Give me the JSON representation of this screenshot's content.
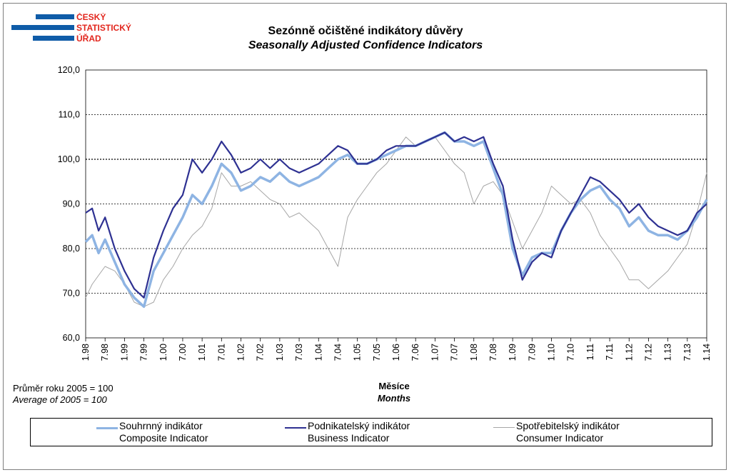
{
  "logo": {
    "lines": [
      "ČESKÝ",
      "STATISTICKÝ",
      "ÚŘAD"
    ],
    "color": "#e2261d",
    "bar_color": "#0f5ca8"
  },
  "title": {
    "cz": "Sezónně očištěné indikátory důvěry",
    "en": "Seasonally Adjusted Confidence Indicators"
  },
  "note": {
    "cz": "Průměr roku 2005 = 100",
    "en": "Average of 2005 = 100"
  },
  "xaxis_title": {
    "cz": "Měsíce",
    "en": "Months"
  },
  "legend": [
    {
      "cz": "Souhrnný indikátor",
      "en": "Composite Indicator",
      "color": "#8eb4e3",
      "width": 3.5
    },
    {
      "cz": "Podnikatelský indikátor",
      "en": "Business Indicator",
      "color": "#2e3192",
      "width": 2.2
    },
    {
      "cz": "Spotřebitelský indikátor",
      "en": "Consumer Indicator",
      "color": "#a6a6a6",
      "width": 1
    }
  ],
  "chart_data": {
    "type": "line",
    "xlabel": "Měsíce / Months",
    "ylabel": "",
    "ylim": [
      60,
      120
    ],
    "yticks": [
      "60,0",
      "70,0",
      "80,0",
      "90,0",
      "100,0",
      "110,0",
      "120,0"
    ],
    "x_range": [
      "1.98",
      "1.14"
    ],
    "xticks": [
      "1.98",
      "7.98",
      "1.99",
      "7.99",
      "1.00",
      "7.00",
      "1.01",
      "7.01",
      "1.02",
      "7.02",
      "1.03",
      "7.03",
      "1.04",
      "7.04",
      "1.05",
      "7.05",
      "1.06",
      "7.06",
      "1.07",
      "7.07",
      "1.08",
      "7.08",
      "1.09",
      "7.09",
      "1.10",
      "7.10",
      "1.11",
      "7.11",
      "1.12",
      "7.12",
      "1.13",
      "7.13",
      "1.14"
    ],
    "grid": "horizontal dashed",
    "legend_position": "bottom",
    "series": [
      {
        "name": "Souhrnný indikátor / Composite Indicator",
        "anchors": [
          [
            "1.98",
            81.5
          ],
          [
            "3.98",
            83
          ],
          [
            "5.98",
            79
          ],
          [
            "7.98",
            82
          ],
          [
            "10.98",
            77
          ],
          [
            "1.99",
            72
          ],
          [
            "4.99",
            69
          ],
          [
            "7.99",
            67
          ],
          [
            "10.99",
            75
          ],
          [
            "1.00",
            79
          ],
          [
            "4.00",
            83
          ],
          [
            "7.00",
            87
          ],
          [
            "10.00",
            92
          ],
          [
            "1.01",
            90
          ],
          [
            "4.01",
            94
          ],
          [
            "7.01",
            99
          ],
          [
            "10.01",
            97
          ],
          [
            "1.02",
            93
          ],
          [
            "4.02",
            94
          ],
          [
            "7.02",
            96
          ],
          [
            "10.02",
            95
          ],
          [
            "1.03",
            97
          ],
          [
            "4.03",
            95
          ],
          [
            "7.03",
            94
          ],
          [
            "10.03",
            95
          ],
          [
            "1.04",
            96
          ],
          [
            "4.04",
            98
          ],
          [
            "7.04",
            100
          ],
          [
            "10.04",
            101
          ],
          [
            "1.05",
            99
          ],
          [
            "4.05",
            99
          ],
          [
            "7.05",
            100
          ],
          [
            "10.05",
            101
          ],
          [
            "1.06",
            102
          ],
          [
            "4.06",
            103
          ],
          [
            "7.06",
            103
          ],
          [
            "10.06",
            104
          ],
          [
            "1.07",
            105
          ],
          [
            "4.07",
            106
          ],
          [
            "7.07",
            104
          ],
          [
            "10.07",
            104
          ],
          [
            "1.08",
            103
          ],
          [
            "4.08",
            104
          ],
          [
            "7.08",
            98
          ],
          [
            "10.08",
            92
          ],
          [
            "1.09",
            80
          ],
          [
            "4.09",
            74
          ],
          [
            "7.09",
            78
          ],
          [
            "10.09",
            79
          ],
          [
            "1.10",
            79
          ],
          [
            "4.10",
            84
          ],
          [
            "7.10",
            88
          ],
          [
            "10.10",
            91
          ],
          [
            "1.11",
            93
          ],
          [
            "4.11",
            94
          ],
          [
            "7.11",
            91
          ],
          [
            "10.11",
            89
          ],
          [
            "1.12",
            85
          ],
          [
            "4.12",
            87
          ],
          [
            "7.12",
            84
          ],
          [
            "10.12",
            83
          ],
          [
            "1.13",
            83
          ],
          [
            "4.13",
            82
          ],
          [
            "7.13",
            84
          ],
          [
            "10.13",
            87
          ],
          [
            "1.14",
            91
          ]
        ]
      },
      {
        "name": "Podnikatelský indikátor / Business Indicator",
        "anchors": [
          [
            "1.98",
            88
          ],
          [
            "3.98",
            89
          ],
          [
            "5.98",
            84
          ],
          [
            "7.98",
            87
          ],
          [
            "10.98",
            80
          ],
          [
            "1.99",
            75
          ],
          [
            "4.99",
            71
          ],
          [
            "7.99",
            69
          ],
          [
            "10.99",
            78
          ],
          [
            "1.00",
            84
          ],
          [
            "4.00",
            89
          ],
          [
            "7.00",
            92
          ],
          [
            "10.00",
            100
          ],
          [
            "1.01",
            97
          ],
          [
            "4.01",
            100
          ],
          [
            "7.01",
            104
          ],
          [
            "10.01",
            101
          ],
          [
            "1.02",
            97
          ],
          [
            "4.02",
            98
          ],
          [
            "7.02",
            100
          ],
          [
            "10.02",
            98
          ],
          [
            "1.03",
            100
          ],
          [
            "4.03",
            98
          ],
          [
            "7.03",
            97
          ],
          [
            "10.03",
            98
          ],
          [
            "1.04",
            99
          ],
          [
            "4.04",
            101
          ],
          [
            "7.04",
            103
          ],
          [
            "10.04",
            102
          ],
          [
            "1.05",
            99
          ],
          [
            "4.05",
            99
          ],
          [
            "7.05",
            100
          ],
          [
            "10.05",
            102
          ],
          [
            "1.06",
            103
          ],
          [
            "4.06",
            103
          ],
          [
            "7.06",
            103
          ],
          [
            "10.06",
            104
          ],
          [
            "1.07",
            105
          ],
          [
            "4.07",
            106
          ],
          [
            "7.07",
            104
          ],
          [
            "10.07",
            105
          ],
          [
            "1.08",
            104
          ],
          [
            "4.08",
            105
          ],
          [
            "7.08",
            99
          ],
          [
            "10.08",
            94
          ],
          [
            "1.09",
            82
          ],
          [
            "4.09",
            73
          ],
          [
            "7.09",
            77
          ],
          [
            "10.09",
            79
          ],
          [
            "1.10",
            78
          ],
          [
            "4.10",
            84
          ],
          [
            "7.10",
            88
          ],
          [
            "10.10",
            92
          ],
          [
            "1.11",
            96
          ],
          [
            "4.11",
            95
          ],
          [
            "7.11",
            93
          ],
          [
            "10.11",
            91
          ],
          [
            "1.12",
            88
          ],
          [
            "4.12",
            90
          ],
          [
            "7.12",
            87
          ],
          [
            "10.12",
            85
          ],
          [
            "1.13",
            84
          ],
          [
            "4.13",
            83
          ],
          [
            "7.13",
            84
          ],
          [
            "10.13",
            88
          ],
          [
            "1.14",
            90
          ]
        ]
      },
      {
        "name": "Spotřebitelský indikátor / Consumer Indicator",
        "anchors": [
          [
            "1.98",
            69
          ],
          [
            "3.98",
            72
          ],
          [
            "5.98",
            74
          ],
          [
            "7.98",
            76
          ],
          [
            "10.98",
            75
          ],
          [
            "1.99",
            72
          ],
          [
            "4.99",
            68
          ],
          [
            "7.99",
            67
          ],
          [
            "10.99",
            68
          ],
          [
            "1.00",
            73
          ],
          [
            "4.00",
            76
          ],
          [
            "7.00",
            80
          ],
          [
            "10.00",
            83
          ],
          [
            "1.01",
            85
          ],
          [
            "4.01",
            89
          ],
          [
            "7.01",
            97
          ],
          [
            "10.01",
            94
          ],
          [
            "1.02",
            94
          ],
          [
            "4.02",
            95
          ],
          [
            "7.02",
            93
          ],
          [
            "10.02",
            91
          ],
          [
            "1.03",
            90
          ],
          [
            "4.03",
            87
          ],
          [
            "7.03",
            88
          ],
          [
            "10.03",
            86
          ],
          [
            "1.04",
            84
          ],
          [
            "4.04",
            80
          ],
          [
            "7.04",
            76
          ],
          [
            "10.04",
            87
          ],
          [
            "1.05",
            91
          ],
          [
            "4.05",
            94
          ],
          [
            "7.05",
            97
          ],
          [
            "10.05",
            99
          ],
          [
            "1.06",
            102
          ],
          [
            "4.06",
            105
          ],
          [
            "7.06",
            103
          ],
          [
            "10.06",
            104
          ],
          [
            "1.07",
            105
          ],
          [
            "4.07",
            102
          ],
          [
            "7.07",
            99
          ],
          [
            "10.07",
            97
          ],
          [
            "1.08",
            90
          ],
          [
            "4.08",
            94
          ],
          [
            "7.08",
            95
          ],
          [
            "10.08",
            92
          ],
          [
            "1.09",
            86
          ],
          [
            "4.09",
            80
          ],
          [
            "7.09",
            84
          ],
          [
            "10.09",
            88
          ],
          [
            "1.10",
            94
          ],
          [
            "4.10",
            92
          ],
          [
            "7.10",
            90
          ],
          [
            "10.10",
            91
          ],
          [
            "1.11",
            88
          ],
          [
            "4.11",
            83
          ],
          [
            "7.11",
            80
          ],
          [
            "10.11",
            77
          ],
          [
            "1.12",
            73
          ],
          [
            "4.12",
            73
          ],
          [
            "7.12",
            71
          ],
          [
            "10.12",
            73
          ],
          [
            "1.13",
            75
          ],
          [
            "4.13",
            78
          ],
          [
            "7.13",
            81
          ],
          [
            "10.13",
            88
          ],
          [
            "1.14",
            97
          ]
        ]
      }
    ]
  }
}
